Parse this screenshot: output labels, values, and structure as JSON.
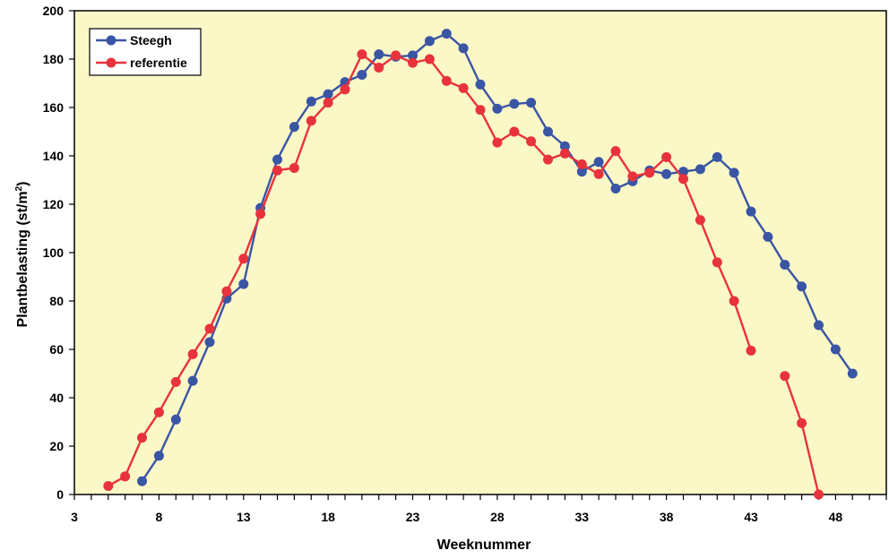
{
  "chart_data": {
    "type": "line",
    "xlabel": "Weeknummer",
    "ylabel": {
      "main": "Plantbelasting (st/m",
      "sup": "2",
      "close": ")"
    },
    "xlim": [
      3,
      51
    ],
    "ylim": [
      0,
      200
    ],
    "x_ticks": [
      3,
      8,
      13,
      18,
      23,
      28,
      33,
      38,
      43,
      48
    ],
    "y_ticks": [
      0,
      20,
      40,
      60,
      80,
      100,
      120,
      140,
      160,
      180,
      200
    ],
    "grid": false,
    "legend_position": "top-left",
    "background_color": "#fbf8c8",
    "series": [
      {
        "name": "Steegh",
        "color": "#3a55a4",
        "points": [
          [
            7,
            5.5
          ],
          [
            8,
            16
          ],
          [
            9,
            31
          ],
          [
            10,
            47
          ],
          [
            11,
            63
          ],
          [
            12,
            81
          ],
          [
            13,
            87
          ],
          [
            14,
            118.5
          ],
          [
            15,
            138.5
          ],
          [
            16,
            152
          ],
          [
            17,
            162.5
          ],
          [
            18,
            165.5
          ],
          [
            19,
            170.5
          ],
          [
            20,
            173.5
          ],
          [
            21,
            182
          ],
          [
            22,
            181
          ],
          [
            23,
            181.5
          ],
          [
            24,
            187.5
          ],
          [
            25,
            190.5
          ],
          [
            26,
            184.5
          ],
          [
            27,
            169.5
          ],
          [
            28,
            159.5
          ],
          [
            29,
            161.5
          ],
          [
            30,
            162
          ],
          [
            31,
            150
          ],
          [
            32,
            144
          ],
          [
            33,
            133.5
          ],
          [
            34,
            137.5
          ],
          [
            35,
            126.5
          ],
          [
            36,
            129.5
          ],
          [
            37,
            134
          ],
          [
            38,
            132.5
          ],
          [
            39,
            133.5
          ],
          [
            40,
            134.5
          ],
          [
            41,
            139.5
          ],
          [
            42,
            133
          ],
          [
            43,
            117
          ],
          [
            44,
            106.5
          ],
          [
            45,
            95
          ],
          [
            46,
            86
          ],
          [
            47,
            70
          ],
          [
            48,
            60
          ],
          [
            49,
            50
          ]
        ]
      },
      {
        "name": "referentie",
        "color": "#e8323c",
        "segments": [
          [
            [
              5,
              3.5
            ],
            [
              6,
              7.5
            ],
            [
              7,
              23.5
            ],
            [
              8,
              34
            ],
            [
              9,
              46.5
            ],
            [
              10,
              58
            ],
            [
              11,
              68.5
            ],
            [
              12,
              84
            ],
            [
              13,
              97.5
            ],
            [
              14,
              116
            ],
            [
              15,
              134
            ],
            [
              16,
              135
            ],
            [
              17,
              154.5
            ],
            [
              18,
              162
            ],
            [
              19,
              167.5
            ],
            [
              20,
              182
            ],
            [
              21,
              176.5
            ],
            [
              22,
              181.5
            ],
            [
              23,
              178.5
            ],
            [
              24,
              180
            ],
            [
              25,
              171
            ],
            [
              26,
              168
            ],
            [
              27,
              159
            ],
            [
              28,
              145.5
            ],
            [
              29,
              150
            ],
            [
              30,
              146
            ],
            [
              31,
              138.5
            ],
            [
              32,
              141
            ],
            [
              33,
              136.5
            ],
            [
              34,
              132.5
            ],
            [
              35,
              142
            ],
            [
              36,
              131.5
            ],
            [
              37,
              133
            ],
            [
              38,
              139.5
            ],
            [
              39,
              130.5
            ],
            [
              40,
              113.5
            ],
            [
              41,
              96
            ],
            [
              42,
              80
            ],
            [
              43,
              59.5
            ]
          ],
          [
            [
              45,
              49
            ],
            [
              46,
              29.5
            ],
            [
              47,
              0
            ]
          ]
        ]
      }
    ]
  }
}
